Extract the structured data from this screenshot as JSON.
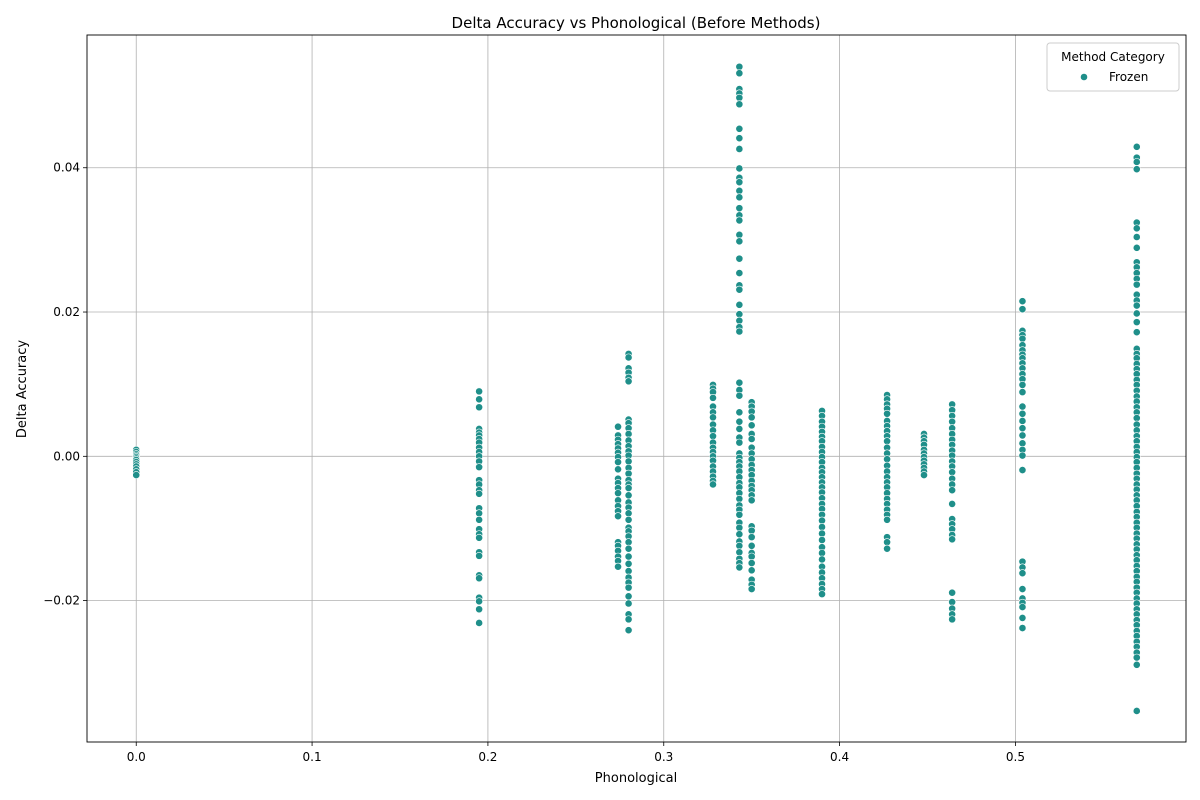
{
  "chart_data": {
    "type": "scatter",
    "title": "Delta Accuracy vs Phonological (Before Methods)",
    "xlabel": "Phonological",
    "ylabel": "Delta Accuracy",
    "xlim": [
      -0.028,
      0.597
    ],
    "ylim": [
      -0.0396,
      0.0584
    ],
    "x_ticks": [
      0.0,
      0.1,
      0.2,
      0.3,
      0.4,
      0.5
    ],
    "x_tick_labels": [
      "0.0",
      "0.1",
      "0.2",
      "0.3",
      "0.4",
      "0.5"
    ],
    "y_ticks": [
      -0.02,
      0.0,
      0.02,
      0.04
    ],
    "y_tick_labels": [
      "−0.02",
      "0.00",
      "0.02",
      "0.04"
    ],
    "grid": true,
    "legend": {
      "title": "Method Category",
      "placement": "top-right"
    },
    "series": [
      {
        "name": "Frozen",
        "color": "#1f8f8a",
        "columns": [
          {
            "x": 0.0,
            "y": [
              0.0009,
              0.0006,
              0.0003,
              0.0001,
              -0.0001,
              -0.0003,
              -0.0005,
              -0.0008,
              -0.0011,
              -0.0014,
              -0.0018,
              -0.0022,
              -0.0026
            ]
          },
          {
            "x": 0.195,
            "y": [
              0.009,
              0.0079,
              0.0068,
              0.0038,
              0.0033,
              0.0029,
              0.0024,
              0.0019,
              0.0012,
              0.0006,
              0.0,
              -0.0007,
              -0.0015,
              -0.0033,
              -0.0039,
              -0.0047,
              -0.0052,
              -0.0072,
              -0.0079,
              -0.0088,
              -0.0101,
              -0.0108,
              -0.0113,
              -0.0133,
              -0.0138,
              -0.0165,
              -0.0169,
              -0.0196,
              -0.0201,
              -0.0212,
              -0.0231
            ]
          },
          {
            "x": 0.274,
            "y": [
              0.0041,
              0.0029,
              0.0023,
              0.0017,
              0.0011,
              0.0005,
              -0.0001,
              -0.0008,
              -0.0018,
              -0.0031,
              -0.0037,
              -0.0044,
              -0.0051,
              -0.0061,
              -0.0069,
              -0.0076,
              -0.0083,
              -0.0119,
              -0.0124,
              -0.0131,
              -0.0139,
              -0.0145,
              -0.0153
            ]
          },
          {
            "x": 0.28,
            "y": [
              0.0142,
              0.0137,
              0.0122,
              0.0116,
              0.0109,
              0.0104,
              0.0051,
              0.0046,
              0.0039,
              0.0031,
              0.0022,
              0.0014,
              0.0007,
              0.0001,
              -0.0007,
              -0.0016,
              -0.0024,
              -0.0033,
              -0.0039,
              -0.0044,
              -0.0054,
              -0.0064,
              -0.0071,
              -0.0079,
              -0.0088,
              -0.0099,
              -0.0104,
              -0.0111,
              -0.0119,
              -0.0128,
              -0.0139,
              -0.0149,
              -0.0159,
              -0.0168,
              -0.0175,
              -0.0182,
              -0.0194,
              -0.0204,
              -0.0219,
              -0.0226,
              -0.0241
            ]
          },
          {
            "x": 0.328,
            "y": [
              0.0099,
              0.0094,
              0.0089,
              0.0081,
              0.0069,
              0.0061,
              0.0054,
              0.0044,
              0.0036,
              0.0028,
              0.0019,
              0.0012,
              0.0006,
              0.0,
              -0.0006,
              -0.0014,
              -0.0021,
              -0.0028,
              -0.0034,
              -0.0039
            ]
          },
          {
            "x": 0.343,
            "y": [
              0.054,
              0.0531,
              0.0509,
              0.0503,
              0.0497,
              0.0488,
              0.0454,
              0.0441,
              0.0426,
              0.0399,
              0.0386,
              0.038,
              0.0368,
              0.0359,
              0.0344,
              0.0334,
              0.0327,
              0.0307,
              0.0298,
              0.0274,
              0.0254,
              0.0237,
              0.0231,
              0.021,
              0.0197,
              0.0188,
              0.0179,
              0.0173,
              0.0102,
              0.0092,
              0.0084,
              0.0061,
              0.0048,
              0.0038,
              0.0026,
              0.0019,
              0.0004,
              -0.0002,
              -0.0008,
              -0.0014,
              -0.0021,
              -0.0029,
              -0.0037,
              -0.0043,
              -0.0051,
              -0.0059,
              -0.0068,
              -0.0074,
              -0.0081,
              -0.0092,
              -0.0099,
              -0.0108,
              -0.0118,
              -0.0124,
              -0.0133,
              -0.0142,
              -0.0148,
              -0.0154
            ]
          },
          {
            "x": 0.35,
            "y": [
              0.0075,
              0.0069,
              0.0062,
              0.0054,
              0.0043,
              0.0031,
              0.0024,
              0.0012,
              0.0004,
              -0.0004,
              -0.0012,
              -0.0019,
              -0.0026,
              -0.0034,
              -0.0041,
              -0.0047,
              -0.0054,
              -0.0061,
              -0.0097,
              -0.0103,
              -0.0112,
              -0.0124,
              -0.0134,
              -0.0139,
              -0.0148,
              -0.0158,
              -0.0171,
              -0.0178,
              -0.0184
            ]
          },
          {
            "x": 0.39,
            "y": [
              0.0063,
              0.0056,
              0.0048,
              0.0041,
              0.0034,
              0.0027,
              0.0021,
              0.0013,
              0.0006,
              -0.0001,
              -0.0008,
              -0.0016,
              -0.0022,
              -0.0029,
              -0.0036,
              -0.0043,
              -0.005,
              -0.0058,
              -0.0066,
              -0.0073,
              -0.0081,
              -0.0089,
              -0.0098,
              -0.0107,
              -0.0116,
              -0.0126,
              -0.0134,
              -0.0143,
              -0.0153,
              -0.0161,
              -0.0169,
              -0.0177,
              -0.0184,
              -0.0191
            ]
          },
          {
            "x": 0.427,
            "y": [
              0.0085,
              0.0079,
              0.0072,
              0.0066,
              0.0059,
              0.0049,
              0.0042,
              0.0035,
              0.0028,
              0.0021,
              0.0012,
              0.0004,
              -0.0004,
              -0.0013,
              -0.0021,
              -0.0029,
              -0.0036,
              -0.0043,
              -0.0051,
              -0.0059,
              -0.0066,
              -0.0074,
              -0.0081,
              -0.0088,
              -0.0112,
              -0.0119,
              -0.0128
            ]
          },
          {
            "x": 0.448,
            "y": [
              0.0031,
              0.0026,
              0.0021,
              0.0016,
              0.0009,
              0.0004,
              -0.0001,
              -0.0006,
              -0.0011,
              -0.0016,
              -0.0021,
              -0.0026
            ]
          },
          {
            "x": 0.464,
            "y": [
              0.0072,
              0.0064,
              0.0056,
              0.0048,
              0.0039,
              0.0031,
              0.0023,
              0.0016,
              0.0008,
              0.0001,
              -0.0007,
              -0.0014,
              -0.0022,
              -0.0031,
              -0.0039,
              -0.0047,
              -0.0066,
              -0.0087,
              -0.0094,
              -0.0101,
              -0.0109,
              -0.0115,
              -0.0189,
              -0.0202,
              -0.0211,
              -0.0219,
              -0.0226
            ]
          },
          {
            "x": 0.504,
            "y": [
              0.0215,
              0.0204,
              0.0174,
              0.0168,
              0.0163,
              0.0154,
              0.0147,
              0.0141,
              0.0136,
              0.0129,
              0.0122,
              0.0114,
              0.0107,
              0.0099,
              0.0089,
              0.0069,
              0.0059,
              0.0049,
              0.0039,
              0.0029,
              0.0018,
              0.0009,
              0.0001,
              -0.0019,
              -0.0146,
              -0.0154,
              -0.0162,
              -0.0184,
              -0.0197,
              -0.0203,
              -0.0209,
              -0.0224,
              -0.0238
            ]
          },
          {
            "x": 0.569,
            "y": [
              0.0429,
              0.0414,
              0.0408,
              0.0398,
              0.0324,
              0.0316,
              0.0304,
              0.0289,
              0.0269,
              0.0262,
              0.0254,
              0.0246,
              0.0238,
              0.0224,
              0.0216,
              0.0209,
              0.0198,
              0.0186,
              0.0172,
              0.0149,
              0.0142,
              0.0136,
              0.0128,
              0.0121,
              0.0114,
              0.0106,
              0.0099,
              0.0091,
              0.0083,
              0.0076,
              0.0068,
              0.0061,
              0.0053,
              0.0044,
              0.0036,
              0.0028,
              0.0021,
              0.0013,
              0.0006,
              -0.0001,
              -0.0008,
              -0.0016,
              -0.0024,
              -0.0031,
              -0.0039,
              -0.0046,
              -0.0054,
              -0.0061,
              -0.0069,
              -0.0077,
              -0.0084,
              -0.0092,
              -0.0099,
              -0.0107,
              -0.0114,
              -0.0122,
              -0.0129,
              -0.0137,
              -0.0144,
              -0.0152,
              -0.0159,
              -0.0167,
              -0.0174,
              -0.0182,
              -0.0189,
              -0.0197,
              -0.0204,
              -0.0212,
              -0.0219,
              -0.0227,
              -0.0234,
              -0.0242,
              -0.0249,
              -0.0257,
              -0.0264,
              -0.0272,
              -0.0279,
              -0.0289,
              -0.0353
            ]
          }
        ]
      }
    ]
  }
}
